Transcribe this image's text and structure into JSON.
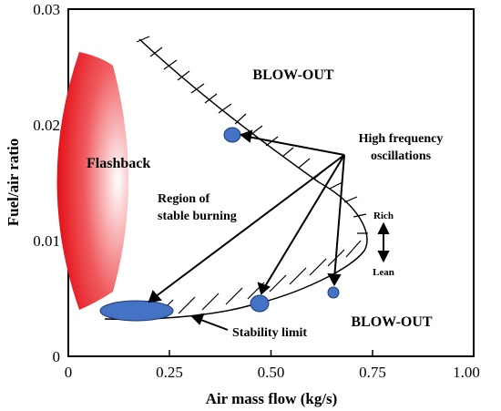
{
  "chart_data": {
    "type": "diagram",
    "xlabel": "Air mass flow (kg/s)",
    "ylabel": "Fuel/air ratio",
    "xlim": [
      0,
      1.0
    ],
    "ylim": [
      0,
      0.03
    ],
    "x_ticks": [
      "0",
      "0.25",
      "0.50",
      "0.75",
      "1.00"
    ],
    "y_ticks": [
      "0",
      "0.01",
      "0.02",
      "0.03"
    ],
    "labels": {
      "blowout_top": "BLOW-OUT",
      "blowout_bottom": "BLOW-OUT",
      "flashback": "Flashback",
      "stable_line1": "Region of",
      "stable_line2": "stable burning",
      "hf_line1": "High frequency",
      "hf_line2": "oscillations",
      "rich": "Rich",
      "lean": "Lean",
      "stability_limit": "Stability limit"
    },
    "colors": {
      "marker": "#4472c4",
      "flashback": "#e8121b",
      "axis": "#000000"
    }
  }
}
